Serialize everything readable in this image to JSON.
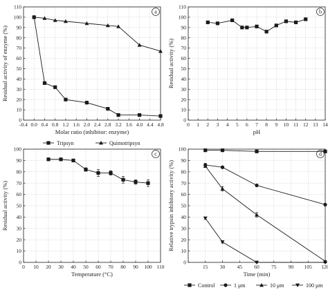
{
  "chart_data": [
    {
      "type": "line",
      "panel": "a",
      "xlabel": "Molar ratio (inhibitor: enzyme)",
      "ylabel": "Residual activity of enzyme (%)",
      "xlim": [
        -0.4,
        4.8
      ],
      "ylim": [
        0,
        110
      ],
      "xticks": [
        -0.4,
        0.0,
        0.4,
        0.8,
        1.2,
        1.6,
        2.0,
        2.4,
        2.8,
        3.2,
        3.6,
        4.0,
        4.4,
        4.8
      ],
      "yticks": [
        0,
        10,
        20,
        30,
        40,
        50,
        60,
        70,
        80,
        90,
        100,
        110
      ],
      "grid": true,
      "legend": "bottom",
      "series": [
        {
          "name": "Tripsyn",
          "marker": "square",
          "x": [
            0.0,
            0.4,
            0.8,
            1.2,
            2.0,
            2.8,
            3.2,
            4.0,
            4.8
          ],
          "y": [
            100,
            36,
            32,
            20,
            17,
            11,
            5,
            5,
            4
          ]
        },
        {
          "name": "Quimotripsyn",
          "marker": "triangle",
          "x": [
            0.0,
            0.4,
            0.8,
            1.2,
            2.0,
            2.8,
            3.2,
            4.0,
            4.8
          ],
          "y": [
            100,
            99,
            97,
            96,
            94,
            92,
            91,
            73,
            67
          ]
        }
      ]
    },
    {
      "type": "line",
      "panel": "b",
      "xlabel": "pH",
      "ylabel": "Residual activity (%)",
      "xlim": [
        0,
        14
      ],
      "ylim": [
        0,
        110
      ],
      "xticks": [
        0,
        1,
        2,
        3,
        4,
        5,
        6,
        7,
        8,
        9,
        10,
        11,
        12,
        13,
        14
      ],
      "yticks": [
        0,
        10,
        20,
        30,
        40,
        50,
        60,
        70,
        80,
        90,
        100,
        110
      ],
      "grid": true,
      "series": [
        {
          "marker": "square",
          "x": [
            2,
            3,
            4.5,
            5.5,
            6,
            7,
            8,
            9,
            10,
            11,
            12
          ],
          "y": [
            95,
            94,
            97,
            90,
            90,
            91,
            86,
            92,
            96,
            95,
            98
          ]
        }
      ]
    },
    {
      "type": "line",
      "panel": "c",
      "xlabel": "Temperature (°C)",
      "ylabel": "Residual activity (%)",
      "xlim": [
        0,
        110
      ],
      "ylim": [
        0,
        100
      ],
      "xticks": [
        0,
        10,
        20,
        30,
        40,
        50,
        60,
        70,
        80,
        90,
        100,
        110
      ],
      "yticks": [
        0,
        10,
        20,
        30,
        40,
        50,
        60,
        70,
        80,
        90,
        100
      ],
      "grid": true,
      "series": [
        {
          "marker": "square",
          "x": [
            20,
            30,
            40,
            50,
            60,
            70,
            80,
            90,
            100
          ],
          "y": [
            91,
            91,
            90,
            82,
            79,
            79,
            73,
            71,
            70
          ],
          "err": [
            1,
            1,
            1,
            1.5,
            3,
            2,
            3,
            2,
            3
          ]
        }
      ]
    },
    {
      "type": "line",
      "panel": "d",
      "xlabel": "Time (min)",
      "ylabel": "Relative trypsin inhibitory activity (%)",
      "xlim": [
        0,
        120
      ],
      "ylim": [
        0,
        100
      ],
      "xticks": [
        0,
        15,
        30,
        45,
        60,
        75,
        90,
        105,
        120
      ],
      "xticklabels": [
        "",
        "15",
        "30",
        "45",
        "60",
        "75",
        "90",
        "105",
        "120"
      ],
      "yticks": [
        0,
        10,
        20,
        30,
        40,
        50,
        60,
        70,
        80,
        90,
        100
      ],
      "grid": true,
      "legend": "bottom",
      "series": [
        {
          "name": "Control",
          "marker": "square",
          "x": [
            15,
            30,
            60,
            120
          ],
          "y": [
            99,
            99,
            98,
            98
          ],
          "err": [
            0.5,
            0.5,
            0.5,
            1
          ]
        },
        {
          "name": "1 μm",
          "marker": "circle",
          "x": [
            15,
            30,
            60,
            120
          ],
          "y": [
            86,
            84,
            68,
            51
          ],
          "err": [
            1.5,
            1,
            1,
            1
          ]
        },
        {
          "name": "10 μm",
          "marker": "triangle",
          "x": [
            15,
            30,
            60,
            120
          ],
          "y": [
            85,
            65,
            42,
            1
          ],
          "err": [
            1,
            2,
            2,
            0.5
          ]
        },
        {
          "name": "100 μm",
          "marker": "invtriangle",
          "x": [
            15,
            30,
            60,
            120
          ],
          "y": [
            39,
            18,
            0,
            0
          ],
          "err": [
            1,
            1,
            0.5,
            0.5
          ]
        }
      ]
    }
  ]
}
